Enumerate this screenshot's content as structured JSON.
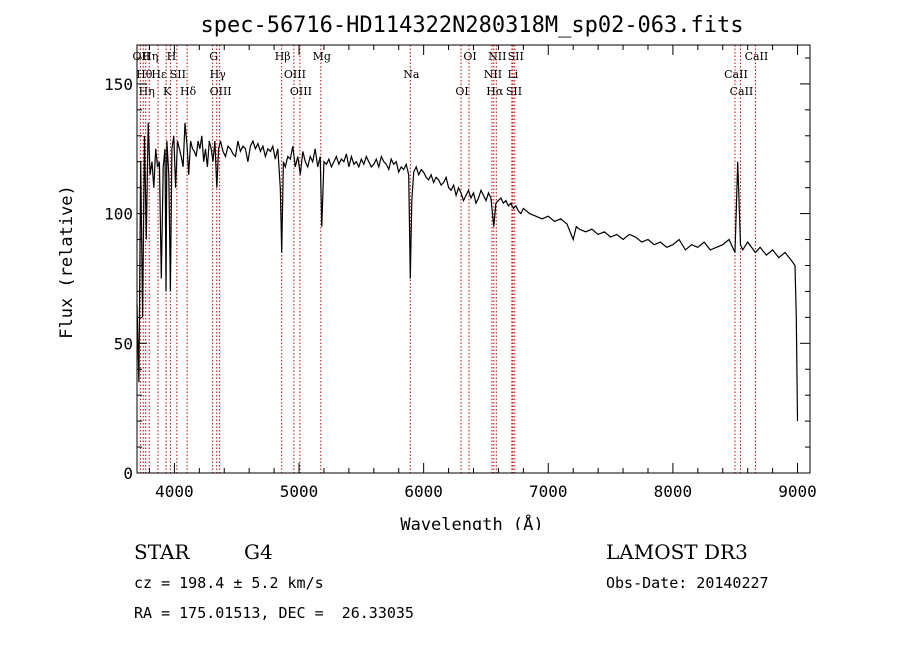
{
  "chart_data": {
    "type": "line",
    "title": "spec-56716-HD114322N280318M_sp02-063.fits",
    "xlabel": "Wavelength (Å)",
    "ylabel": "Flux (relative)",
    "xlim": [
      3700,
      9100
    ],
    "ylim": [
      0,
      165
    ],
    "xticks": [
      4000,
      5000,
      6000,
      7000,
      8000,
      9000
    ],
    "yticks": [
      0,
      50,
      100,
      150
    ],
    "line_color": "#000000",
    "marker_color": "#cc0000",
    "series": [
      {
        "x": [
          3700,
          3715,
          3730,
          3745,
          3760,
          3775,
          3790,
          3805,
          3820,
          3835,
          3850,
          3865,
          3880,
          3895,
          3910,
          3925,
          3933,
          3940,
          3955,
          3968,
          3980,
          3995,
          4010,
          4025,
          4040,
          4055,
          4070,
          4085,
          4102,
          4115,
          4130,
          4145,
          4160,
          4175,
          4190,
          4205,
          4220,
          4235,
          4250,
          4265,
          4280,
          4295,
          4310,
          4325,
          4340,
          4355,
          4370,
          4390,
          4410,
          4430,
          4450,
          4470,
          4490,
          4510,
          4530,
          4550,
          4570,
          4590,
          4610,
          4630,
          4650,
          4670,
          4690,
          4710,
          4730,
          4750,
          4770,
          4790,
          4810,
          4830,
          4850,
          4861,
          4875,
          4890,
          4910,
          4930,
          4950,
          4970,
          4990,
          5010,
          5030,
          5050,
          5070,
          5090,
          5110,
          5130,
          5150,
          5170,
          5183,
          5200,
          5220,
          5240,
          5260,
          5280,
          5300,
          5320,
          5340,
          5360,
          5380,
          5400,
          5420,
          5440,
          5460,
          5480,
          5500,
          5520,
          5540,
          5560,
          5580,
          5600,
          5620,
          5640,
          5660,
          5680,
          5700,
          5720,
          5740,
          5760,
          5780,
          5800,
          5820,
          5840,
          5860,
          5880,
          5893,
          5905,
          5920,
          5940,
          5960,
          5980,
          6000,
          6020,
          6040,
          6060,
          6080,
          6100,
          6120,
          6140,
          6160,
          6180,
          6200,
          6220,
          6240,
          6260,
          6280,
          6300,
          6320,
          6340,
          6360,
          6380,
          6400,
          6420,
          6440,
          6460,
          6480,
          6500,
          6520,
          6540,
          6563,
          6580,
          6600,
          6620,
          6640,
          6660,
          6680,
          6700,
          6720,
          6740,
          6760,
          6780,
          6800,
          6850,
          6900,
          6950,
          7000,
          7050,
          7100,
          7150,
          7200,
          7225,
          7250,
          7300,
          7350,
          7400,
          7450,
          7500,
          7550,
          7600,
          7650,
          7700,
          7750,
          7800,
          7850,
          7900,
          7950,
          8000,
          8050,
          8100,
          8150,
          8200,
          8250,
          8300,
          8350,
          8400,
          8450,
          8498,
          8520,
          8542,
          8560,
          8600,
          8662,
          8700,
          8750,
          8800,
          8850,
          8900,
          8950,
          8980,
          8990,
          9000
        ],
        "values": [
          65,
          35,
          120,
          60,
          130,
          90,
          135,
          115,
          120,
          110,
          125,
          118,
          120,
          75,
          118,
          125,
          70,
          128,
          115,
          70,
          125,
          130,
          110,
          128,
          125,
          122,
          118,
          135,
          126,
          115,
          128,
          125,
          124,
          122,
          128,
          125,
          130,
          120,
          125,
          118,
          128,
          125,
          120,
          128,
          110,
          125,
          128,
          124,
          122,
          126,
          125,
          123,
          122,
          128,
          124,
          126,
          125,
          120,
          126,
          128,
          125,
          127,
          124,
          126,
          122,
          125,
          124,
          126,
          121,
          125,
          110,
          85,
          120,
          118,
          122,
          121,
          126,
          118,
          122,
          115,
          124,
          120,
          118,
          122,
          120,
          125,
          118,
          122,
          95,
          120,
          119,
          121,
          118,
          120,
          122,
          119,
          121,
          120,
          123,
          118,
          122,
          119,
          120,
          118,
          121,
          119,
          122,
          120,
          118,
          119,
          121,
          118,
          122,
          120,
          119,
          117,
          121,
          119,
          120,
          116,
          118,
          117,
          119,
          115,
          75,
          105,
          116,
          118,
          115,
          117,
          116,
          114,
          113,
          115,
          112,
          114,
          113,
          111,
          112,
          114,
          110,
          109,
          111,
          107,
          110,
          108,
          105,
          107,
          109,
          106,
          108,
          104,
          106,
          109,
          107,
          105,
          108,
          106,
          95,
          104,
          105,
          106,
          104,
          105,
          103,
          104,
          102,
          103,
          101,
          100,
          102,
          100,
          99,
          98,
          99,
          97,
          98,
          96,
          90,
          95,
          94,
          93,
          94,
          92,
          93,
          91,
          92,
          90,
          92,
          91,
          89,
          90,
          88,
          89,
          87,
          88,
          90,
          86,
          88,
          87,
          89,
          86,
          87,
          88,
          90,
          85,
          120,
          88,
          86,
          89,
          85,
          87,
          84,
          86,
          83,
          85,
          82,
          80,
          60,
          20
        ]
      }
    ],
    "spectral_lines": [
      {
        "wave": 3727,
        "label": "OII"
      },
      {
        "wave": 3750,
        "label": "Hθ"
      },
      {
        "wave": 3770,
        "label": "Hη"
      },
      {
        "wave": 3798,
        "label": "Hη"
      },
      {
        "wave": 3869,
        "label": "Hε"
      },
      {
        "wave": 3934,
        "label": "K"
      },
      {
        "wave": 3968,
        "label": "H"
      },
      {
        "wave": 4020,
        "label": "SII"
      },
      {
        "wave": 4102,
        "label": "Hδ"
      },
      {
        "wave": 4307,
        "label": "G"
      },
      {
        "wave": 4340,
        "label": "Hγ"
      },
      {
        "wave": 4363,
        "label": "OIII"
      },
      {
        "wave": 4861,
        "label": "Hβ"
      },
      {
        "wave": 4959,
        "label": "OIII"
      },
      {
        "wave": 5007,
        "label": "OIII"
      },
      {
        "wave": 5175,
        "label": "Mg"
      },
      {
        "wave": 5893,
        "label": "Na"
      },
      {
        "wave": 6300,
        "label": "OI"
      },
      {
        "wave": 6364,
        "label": "OI"
      },
      {
        "wave": 6548,
        "label": "NII"
      },
      {
        "wave": 6563,
        "label": "Hα"
      },
      {
        "wave": 6583,
        "label": "NII"
      },
      {
        "wave": 6708,
        "label": "Li"
      },
      {
        "wave": 6717,
        "label": "SII"
      },
      {
        "wave": 6731,
        "label": "SII"
      },
      {
        "wave": 8498,
        "label": "CaII"
      },
      {
        "wave": 8542,
        "label": "CaII"
      },
      {
        "wave": 8662,
        "label": "CaII"
      }
    ]
  },
  "info": {
    "object_type": "STAR",
    "subclass": "G4",
    "redshift": "cz = 198.4 ± 5.2 km/s",
    "coordinates": "RA = 175.01513, DEC =  26.33035",
    "survey": "LAMOST DR3",
    "obs_date": "Obs-Date: 20140227"
  }
}
